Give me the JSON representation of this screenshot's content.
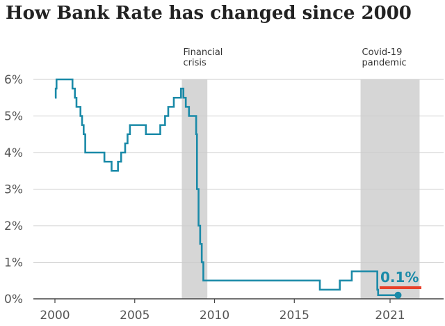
{
  "chart_data": {
    "type": "line",
    "title": "How Bank Rate has changed since 2000",
    "xlabel": "",
    "ylabel": "",
    "xlim": [
      1999.6,
      2023.6
    ],
    "ylim": [
      0,
      6
    ],
    "x_ticks": [
      2000,
      2005,
      2010,
      2015,
      2021
    ],
    "x_tick_labels": [
      "2000",
      "2005",
      "2010",
      "2015",
      "2021"
    ],
    "y_ticks": [
      0,
      1,
      2,
      3,
      4,
      5,
      6
    ],
    "y_tick_labels": [
      "0%",
      "1%",
      "2%",
      "3%",
      "4%",
      "5%",
      "6%"
    ],
    "grid": true,
    "series_color": "#1a8aa8",
    "shade_color": "#d6d6d6",
    "end_label_color": "#1a8aa8",
    "end_underline_color": "#e8402a",
    "shaded_periods": [
      {
        "label_lines": [
          "Financial",
          "crisis"
        ],
        "start": 2007.95,
        "end": 2009.55
      },
      {
        "label_lines": [
          "Covid-19",
          "pandemic"
        ],
        "start": 2019.15,
        "end": 2022.85
      }
    ],
    "series": [
      {
        "step": true,
        "points": [
          [
            2000.0,
            5.5
          ],
          [
            2000.05,
            5.75
          ],
          [
            2000.1,
            6.0
          ],
          [
            2001.1,
            5.75
          ],
          [
            2001.25,
            5.5
          ],
          [
            2001.35,
            5.25
          ],
          [
            2001.6,
            5.0
          ],
          [
            2001.7,
            4.75
          ],
          [
            2001.8,
            4.5
          ],
          [
            2001.9,
            4.0
          ],
          [
            2003.1,
            3.75
          ],
          [
            2003.55,
            3.5
          ],
          [
            2003.95,
            3.75
          ],
          [
            2004.15,
            4.0
          ],
          [
            2004.4,
            4.25
          ],
          [
            2004.55,
            4.5
          ],
          [
            2004.7,
            4.75
          ],
          [
            2005.7,
            4.5
          ],
          [
            2006.6,
            4.75
          ],
          [
            2006.9,
            5.0
          ],
          [
            2007.1,
            5.25
          ],
          [
            2007.45,
            5.5
          ],
          [
            2007.9,
            5.75
          ],
          [
            2008.05,
            5.5
          ],
          [
            2008.2,
            5.25
          ],
          [
            2008.4,
            5.0
          ],
          [
            2008.85,
            4.5
          ],
          [
            2008.9,
            3.0
          ],
          [
            2009.0,
            2.0
          ],
          [
            2009.1,
            1.5
          ],
          [
            2009.2,
            1.0
          ],
          [
            2009.3,
            0.5
          ],
          [
            2016.6,
            0.25
          ],
          [
            2017.85,
            0.5
          ],
          [
            2018.6,
            0.75
          ],
          [
            2020.2,
            0.25
          ],
          [
            2020.25,
            0.1
          ],
          [
            2021.5,
            0.1
          ]
        ]
      }
    ],
    "annotations": [
      {
        "text": "0.1%",
        "x": 2021.5,
        "y": 0.1
      }
    ]
  }
}
